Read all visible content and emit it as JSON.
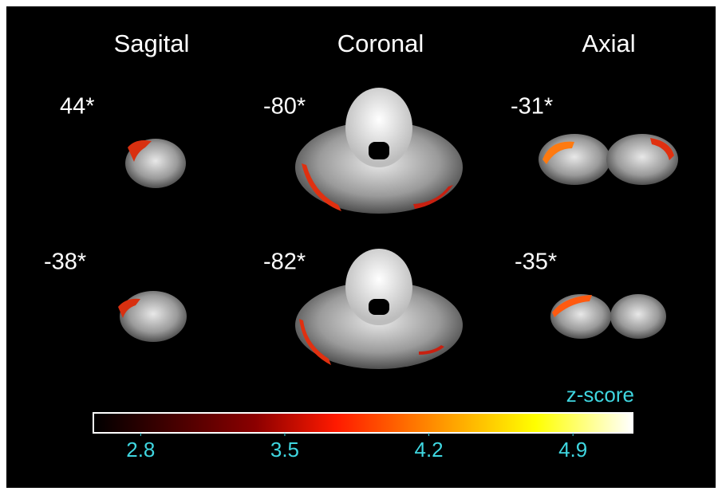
{
  "headers": [
    "Sagital",
    "Coronal",
    "Axial"
  ],
  "slices": [
    [
      "44*",
      "-80*",
      "-31*"
    ],
    [
      "-38*",
      "-82*",
      "-35*"
    ]
  ],
  "colorbar": {
    "title": "z-score",
    "ticks": [
      2.8,
      3.5,
      4.2,
      4.9
    ],
    "lim": [
      2.57,
      5.19
    ]
  }
}
